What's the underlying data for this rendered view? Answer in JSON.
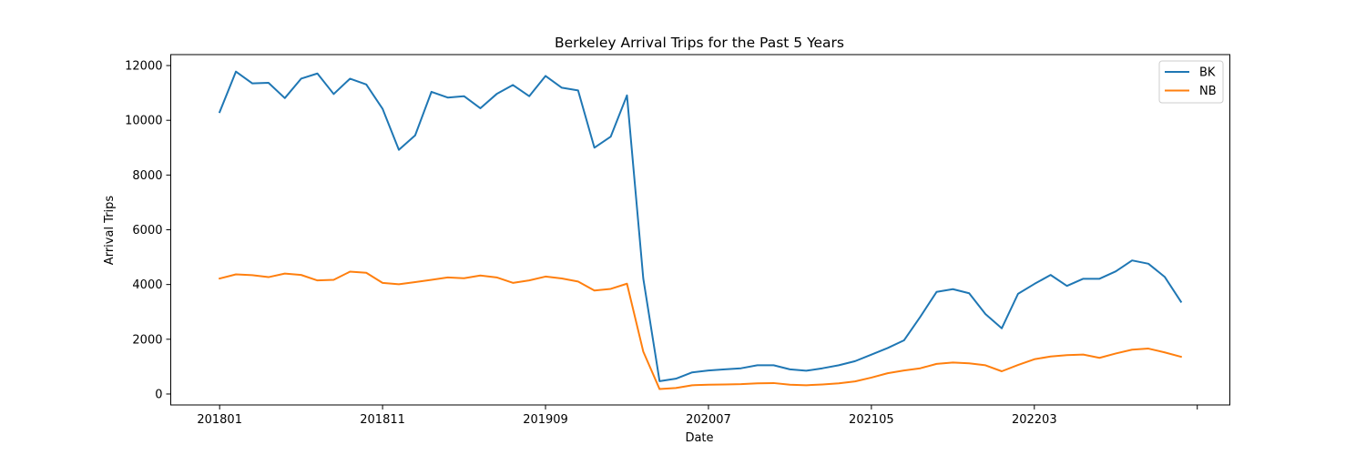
{
  "chart_data": {
    "type": "line",
    "title": "Berkeley Arrival Trips for the Past 5 Years",
    "xlabel": "Date",
    "ylabel": "Arrival Trips",
    "x_tick_labels": [
      "201801",
      "201811",
      "201909",
      "202007",
      "202105",
      "202203",
      ""
    ],
    "x_tick_index": [
      0,
      10,
      20,
      30,
      40,
      50,
      60
    ],
    "xlim": [
      -3,
      62
    ],
    "ylim": [
      -400,
      12400
    ],
    "y_ticks": [
      0,
      2000,
      4000,
      6000,
      8000,
      10000,
      12000
    ],
    "grid": false,
    "legend_position": "top-right",
    "categories": [
      "201801",
      "201802",
      "201803",
      "201804",
      "201805",
      "201806",
      "201807",
      "201808",
      "201809",
      "201810",
      "201811",
      "201812",
      "201901",
      "201902",
      "201903",
      "201904",
      "201905",
      "201906",
      "201907",
      "201908",
      "201909",
      "201910",
      "201911",
      "201912",
      "202001",
      "202002",
      "202003",
      "202004",
      "202005",
      "202006",
      "202007",
      "202008",
      "202009",
      "202010",
      "202011",
      "202012",
      "202101",
      "202102",
      "202103",
      "202104",
      "202105",
      "202106",
      "202107",
      "202108",
      "202109",
      "202110",
      "202111",
      "202112",
      "202201",
      "202202",
      "202203",
      "202204",
      "202205",
      "202206",
      "202207",
      "202208",
      "202209",
      "202210",
      "202211",
      "202212"
    ],
    "series": [
      {
        "name": "BK",
        "color": "#1f77b4",
        "values": [
          10300,
          11780,
          11350,
          11370,
          10810,
          11520,
          11710,
          10960,
          11520,
          11310,
          10420,
          8920,
          9450,
          11040,
          10830,
          10880,
          10440,
          10960,
          11290,
          10880,
          11620,
          11190,
          11090,
          9000,
          9400,
          10910,
          4220,
          470,
          560,
          790,
          860,
          900,
          940,
          1050,
          1050,
          900,
          850,
          940,
          1050,
          1200,
          1440,
          1680,
          1960,
          2820,
          3730,
          3830,
          3680,
          2920,
          2400,
          3660,
          4020,
          4350,
          3950,
          4210,
          4210,
          4480,
          4880,
          4760,
          4280,
          3370
        ]
      },
      {
        "name": "NB",
        "color": "#ff7f0e",
        "values": [
          4220,
          4370,
          4340,
          4270,
          4400,
          4350,
          4150,
          4170,
          4470,
          4430,
          4060,
          4010,
          4090,
          4170,
          4260,
          4230,
          4330,
          4260,
          4060,
          4150,
          4290,
          4220,
          4110,
          3780,
          3840,
          4030,
          1550,
          180,
          220,
          320,
          340,
          350,
          360,
          390,
          400,
          340,
          320,
          350,
          390,
          460,
          600,
          760,
          860,
          940,
          1100,
          1150,
          1120,
          1050,
          830,
          1060,
          1270,
          1370,
          1420,
          1440,
          1320,
          1480,
          1620,
          1660,
          1520,
          1360
        ]
      }
    ]
  }
}
